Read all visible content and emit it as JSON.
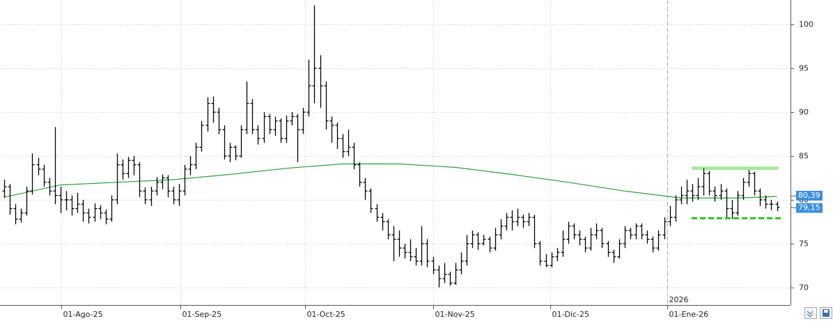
{
  "chart_data": {
    "type": "ohlc",
    "bar_color": "#000000",
    "xlim": [
      -0.74,
      139.4
    ],
    "xticks": [
      {
        "value": 10.13,
        "label": "01-Ago-25"
      },
      {
        "value": 31.24,
        "label": "01-Sep-25"
      },
      {
        "value": 53.34,
        "label": "01-Oct-25"
      },
      {
        "value": 76.06,
        "label": "01-Nov-25"
      },
      {
        "value": 96.8,
        "label": "01-Dic-25"
      },
      {
        "value": 117.55,
        "label": "01-Ene-26"
      }
    ],
    "ylim": [
      68,
      102.8
    ],
    "yticks": [
      70,
      75,
      80,
      85,
      90,
      95,
      100
    ],
    "grid": true,
    "year_marker": {
      "x": 117.55,
      "label": "2026"
    },
    "open": [
      81,
      81.5,
      79,
      77.8,
      78.5,
      81,
      84,
      83.5,
      82,
      81,
      80.5,
      80,
      80,
      79,
      79.5,
      78.5,
      78,
      79,
      78.5,
      77.8,
      80,
      84,
      83,
      84.5,
      84,
      81,
      80,
      81,
      82,
      82.5,
      81,
      80,
      81,
      83.5,
      84,
      86,
      88.5,
      91,
      90,
      88,
      85,
      86,
      85,
      88,
      91,
      88,
      87,
      89.5,
      88,
      89,
      87,
      89,
      89.5,
      88,
      90,
      93,
      95,
      93,
      89,
      88.5,
      87,
      85.5,
      86,
      84,
      82,
      81,
      79,
      78,
      77.5,
      76,
      75.5,
      74.5,
      74,
      73.5,
      73,
      75,
      73,
      72,
      71,
      71.5,
      70.5,
      72,
      73,
      75,
      76,
      75,
      75.5,
      74.5,
      76,
      77,
      78,
      77.5,
      78,
      77.5,
      78,
      75,
      73,
      72.5,
      73.5,
      74,
      75.5,
      77,
      76,
      75.5,
      74.5,
      76,
      76.5,
      75,
      74,
      73.5,
      75,
      76.5,
      76,
      77,
      76,
      75.5,
      74.5,
      76,
      77.5,
      78,
      80,
      80.5,
      81,
      80.5,
      81.5,
      83,
      81,
      80.5,
      81,
      79,
      78.5,
      80.5,
      82,
      83,
      81,
      80,
      79.5,
      79.5
    ],
    "high": [
      82.3,
      81.8,
      79.5,
      79,
      81.5,
      85.3,
      84.8,
      84,
      82.5,
      88.3,
      81.5,
      81,
      80.5,
      80.8,
      80,
      79,
      79.6,
      79.4,
      78.9,
      80.5,
      85.3,
      84.6,
      84.9,
      85,
      84.3,
      81.4,
      81.5,
      82.6,
      82.9,
      82.8,
      81.5,
      81.8,
      84,
      85,
      86.5,
      89,
      91.7,
      91.8,
      90.5,
      88.5,
      86.5,
      86.2,
      88.5,
      93.5,
      91.5,
      88.5,
      90,
      89.8,
      89.5,
      89.3,
      89.6,
      90,
      89.8,
      90.5,
      96,
      102.2,
      96.5,
      93.5,
      89.5,
      88.8,
      87.5,
      88,
      86.5,
      84.3,
      82.5,
      81.3,
      79.5,
      78.5,
      77.8,
      77,
      76.5,
      75,
      75.5,
      74.5,
      77,
      75.5,
      73.5,
      72.5,
      72.8,
      71.8,
      72.8,
      74,
      76,
      76.5,
      76.3,
      76,
      75.8,
      76.8,
      77.8,
      78.5,
      78.8,
      79,
      78.3,
      78.5,
      78.3,
      75.3,
      73.8,
      74,
      74.5,
      76.5,
      77.5,
      77.3,
      76.5,
      75.8,
      76.8,
      77.3,
      76.8,
      75.3,
      74.3,
      75.5,
      77,
      76.8,
      77.3,
      77.3,
      76.5,
      75.8,
      76.5,
      78,
      79.3,
      80.5,
      81.5,
      82.3,
      81.8,
      82.5,
      83.6,
      83.3,
      81.5,
      81.8,
      81.3,
      80,
      81,
      82.5,
      83.4,
      83.2,
      81.3,
      80.5,
      80,
      79.8
    ],
    "low": [
      80.2,
      78.3,
      77.2,
      77.4,
      78.2,
      80.6,
      82.8,
      81.5,
      80.5,
      79.5,
      78.5,
      78.8,
      78.2,
      78.5,
      77.5,
      77.3,
      77.5,
      77.8,
      77.2,
      77.5,
      79.5,
      82.3,
      82.5,
      82.8,
      80.3,
      79.5,
      79.3,
      80.5,
      81.2,
      80.3,
      79.5,
      79.3,
      80.5,
      82.8,
      83.5,
      85.5,
      87.8,
      88.8,
      87.5,
      84.6,
      84.3,
      84.5,
      84.8,
      87.5,
      87.5,
      86.3,
      86.5,
      87.5,
      87.3,
      86.5,
      86.5,
      88.5,
      84.3,
      87.5,
      89.5,
      91,
      90.5,
      88,
      86.5,
      85.8,
      84.8,
      85,
      83.5,
      81.5,
      80,
      78.5,
      77.5,
      76.5,
      75.5,
      73,
      73.5,
      73.3,
      73,
      72.5,
      72.5,
      72.3,
      71.5,
      70,
      70.5,
      70.2,
      70.3,
      71.5,
      72.5,
      74.5,
      74.3,
      74.8,
      74,
      74.2,
      75.5,
      76.5,
      76.5,
      77,
      76.8,
      77,
      74.5,
      72.5,
      72.3,
      72.3,
      73,
      73.5,
      75,
      75.5,
      74.8,
      74,
      74.2,
      75.5,
      74.5,
      73.5,
      72.8,
      73.3,
      74.5,
      75.5,
      75.5,
      75.5,
      75,
      74,
      74.2,
      75.5,
      77,
      77.5,
      79.5,
      79.5,
      79.8,
      80,
      80.5,
      80.5,
      79.8,
      80,
      78,
      77.8,
      78.2,
      80,
      81.5,
      80.5,
      79.3,
      79,
      78.8,
      78.7
    ],
    "close": [
      81.5,
      79,
      77.8,
      78.5,
      81,
      84,
      83.5,
      82,
      81,
      80.5,
      80,
      80,
      79,
      79.5,
      78.5,
      78,
      79,
      78.5,
      77.8,
      80,
      84,
      83,
      84.5,
      84,
      81,
      80,
      81,
      82,
      82.5,
      81,
      80,
      81,
      83.5,
      84,
      86,
      88.5,
      91,
      90,
      88,
      85,
      86,
      85,
      88,
      91,
      88,
      87,
      89.5,
      88,
      89,
      87,
      89,
      89.5,
      88,
      90,
      93,
      95,
      93,
      89,
      88.5,
      87,
      85.5,
      86,
      84,
      82,
      81,
      79,
      78,
      77.5,
      76,
      75.5,
      74.5,
      74,
      73.5,
      73,
      75,
      73,
      72,
      71,
      71.5,
      70.5,
      72,
      73,
      75,
      76,
      75,
      75.5,
      74.5,
      76,
      77,
      78,
      77.5,
      78,
      77.5,
      78,
      75,
      73,
      72.5,
      73.5,
      74,
      75.5,
      77,
      76,
      75.5,
      74.5,
      76,
      76.5,
      75,
      74,
      73.5,
      75,
      76.5,
      76,
      77,
      76,
      75.5,
      74.5,
      76,
      77.5,
      78,
      80,
      80.5,
      81,
      80.5,
      81.5,
      83,
      81,
      80.5,
      81,
      79,
      78.5,
      80.5,
      82,
      83,
      81,
      80,
      79.5,
      79.5,
      79.15
    ],
    "moving_average": {
      "color": "#2e9a44",
      "x": [
        0,
        10,
        20,
        30,
        40,
        50,
        60,
        70,
        80,
        90,
        100,
        110,
        120,
        130,
        137
      ],
      "values": [
        80.3,
        81.7,
        82.0,
        82.3,
        82.9,
        83.6,
        84.1,
        84.1,
        83.7,
        82.9,
        82.0,
        81.0,
        80.2,
        80.2,
        80.39
      ]
    },
    "levels": [
      {
        "value": 83.6,
        "x": [
          121.87,
          137.3
        ],
        "color": "#a8e8a0",
        "style": "solid"
      },
      {
        "value": 77.9,
        "x": [
          121.87,
          137.8
        ],
        "color": "#22c622",
        "style": "dashed"
      }
    ],
    "markers": [
      {
        "value": 80.39,
        "label": "80,39",
        "color": "#3d8fdc"
      },
      {
        "value": 79.15,
        "label": "79,15",
        "color": "#3d8fdc"
      }
    ]
  }
}
